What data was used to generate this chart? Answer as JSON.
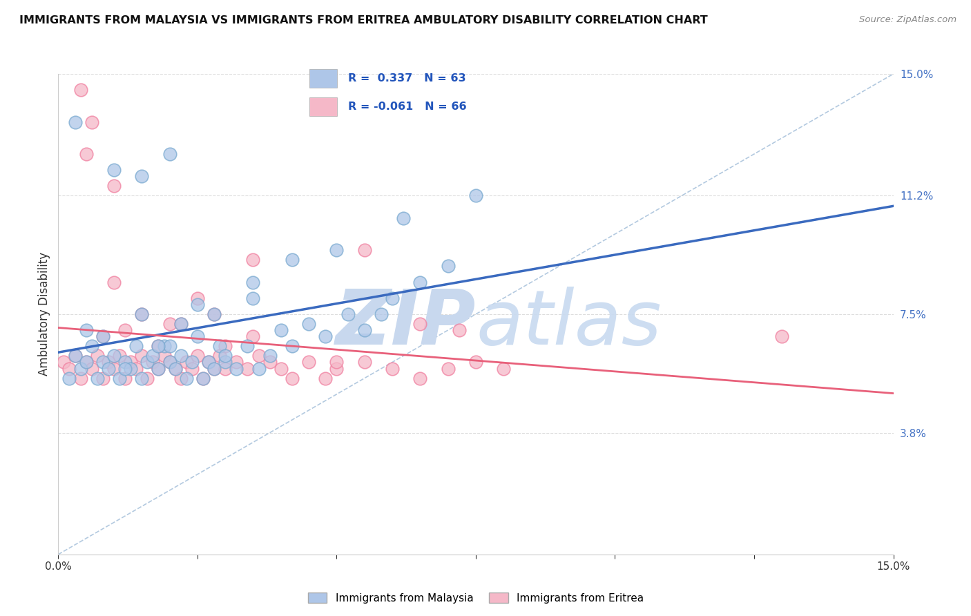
{
  "title": "IMMIGRANTS FROM MALAYSIA VS IMMIGRANTS FROM ERITREA AMBULATORY DISABILITY CORRELATION CHART",
  "source": "Source: ZipAtlas.com",
  "ylabel": "Ambulatory Disability",
  "xmin": 0.0,
  "xmax": 15.0,
  "ymin": 0.0,
  "ymax": 15.0,
  "yticks": [
    3.8,
    7.5,
    11.2,
    15.0
  ],
  "xtick_positions": [
    0.0,
    2.5,
    5.0,
    7.5,
    10.0,
    12.5,
    15.0
  ],
  "malaysia_R": 0.337,
  "malaysia_N": 63,
  "eritrea_R": -0.061,
  "eritrea_N": 66,
  "malaysia_color": "#aec6e8",
  "eritrea_color": "#f5b8c8",
  "malaysia_edge_color": "#7aaad0",
  "eritrea_edge_color": "#f080a0",
  "malaysia_line_color": "#3a6abf",
  "eritrea_line_color": "#e8607a",
  "diagonal_color": "#a0bcd8",
  "watermark_color": "#c8d8ee",
  "legend_malaysia": "Immigrants from Malaysia",
  "legend_eritrea": "Immigrants from Eritrea",
  "malaysia_x": [
    0.2,
    0.3,
    0.4,
    0.5,
    0.6,
    0.7,
    0.8,
    0.9,
    1.0,
    1.1,
    1.2,
    1.3,
    1.4,
    1.5,
    1.6,
    1.7,
    1.8,
    1.9,
    2.0,
    2.1,
    2.2,
    2.3,
    2.4,
    2.5,
    2.6,
    2.7,
    2.8,
    2.9,
    3.0,
    3.2,
    3.4,
    3.6,
    3.8,
    4.0,
    4.2,
    4.5,
    4.8,
    5.2,
    5.5,
    5.8,
    6.0,
    6.5,
    7.0,
    1.5,
    2.0,
    2.5,
    3.0,
    3.5,
    0.5,
    0.8,
    1.2,
    1.8,
    2.2,
    2.8,
    3.5,
    4.2,
    5.0,
    6.2,
    7.5,
    0.3,
    1.0,
    1.5,
    2.0
  ],
  "malaysia_y": [
    5.5,
    6.2,
    5.8,
    6.0,
    6.5,
    5.5,
    6.0,
    5.8,
    6.2,
    5.5,
    6.0,
    5.8,
    6.5,
    5.5,
    6.0,
    6.2,
    5.8,
    6.5,
    6.0,
    5.8,
    6.2,
    5.5,
    6.0,
    6.8,
    5.5,
    6.0,
    5.8,
    6.5,
    6.0,
    5.8,
    6.5,
    5.8,
    6.2,
    7.0,
    6.5,
    7.2,
    6.8,
    7.5,
    7.0,
    7.5,
    8.0,
    8.5,
    9.0,
    7.5,
    6.5,
    7.8,
    6.2,
    8.0,
    7.0,
    6.8,
    5.8,
    6.5,
    7.2,
    7.5,
    8.5,
    9.2,
    9.5,
    10.5,
    11.2,
    13.5,
    12.0,
    11.8,
    12.5
  ],
  "eritrea_x": [
    0.1,
    0.2,
    0.3,
    0.4,
    0.5,
    0.6,
    0.7,
    0.8,
    0.9,
    1.0,
    1.1,
    1.2,
    1.3,
    1.4,
    1.5,
    1.6,
    1.7,
    1.8,
    1.9,
    2.0,
    2.1,
    2.2,
    2.3,
    2.4,
    2.5,
    2.6,
    2.7,
    2.8,
    2.9,
    3.0,
    3.2,
    3.4,
    3.6,
    3.8,
    4.0,
    4.5,
    5.0,
    5.5,
    6.0,
    6.5,
    7.0,
    7.5,
    8.0,
    0.5,
    1.0,
    1.5,
    2.0,
    2.5,
    3.0,
    0.8,
    1.2,
    1.8,
    2.2,
    2.8,
    3.5,
    4.2,
    5.0,
    6.5,
    13.0,
    3.5,
    5.5,
    4.8,
    7.2,
    0.4,
    0.6,
    1.0
  ],
  "eritrea_y": [
    6.0,
    5.8,
    6.2,
    5.5,
    6.0,
    5.8,
    6.2,
    5.5,
    6.0,
    5.8,
    6.2,
    5.5,
    6.0,
    5.8,
    6.2,
    5.5,
    6.0,
    5.8,
    6.2,
    6.0,
    5.8,
    5.5,
    6.0,
    5.8,
    6.2,
    5.5,
    6.0,
    5.8,
    6.2,
    5.8,
    6.0,
    5.8,
    6.2,
    6.0,
    5.8,
    6.0,
    5.8,
    6.0,
    5.8,
    5.5,
    5.8,
    6.0,
    5.8,
    12.5,
    8.5,
    7.5,
    7.2,
    8.0,
    6.5,
    6.8,
    7.0,
    6.5,
    7.2,
    7.5,
    6.8,
    5.5,
    6.0,
    7.2,
    6.8,
    9.2,
    9.5,
    5.5,
    7.0,
    14.5,
    13.5,
    11.5
  ]
}
